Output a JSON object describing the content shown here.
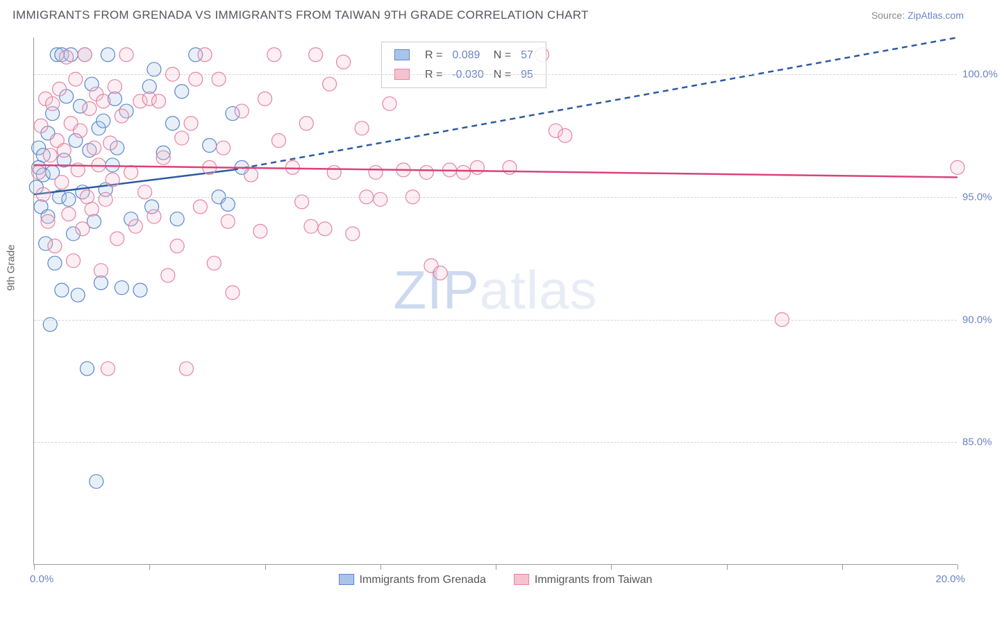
{
  "header": {
    "title": "IMMIGRANTS FROM GRENADA VS IMMIGRANTS FROM TAIWAN 9TH GRADE CORRELATION CHART",
    "source_prefix": "Source: ",
    "source_link": "ZipAtlas.com"
  },
  "chart": {
    "type": "scatter",
    "y_axis_label": "9th Grade",
    "background_color": "#ffffff",
    "grid_color": "#d4d4d4",
    "axis_color": "#999999",
    "xlim": [
      0,
      20
    ],
    "ylim": [
      80,
      101.5
    ],
    "x_ticks": [
      0,
      2.5,
      5,
      7.5,
      10,
      12.5,
      15,
      17.5,
      20
    ],
    "x_tick_labels": {
      "0": "0.0%",
      "20": "20.0%"
    },
    "y_ticks": [
      85,
      90,
      95,
      100
    ],
    "y_tick_labels": [
      "85.0%",
      "90.0%",
      "95.0%",
      "100.0%"
    ],
    "watermark": {
      "text_a": "ZIP",
      "text_b": "atlas"
    },
    "marker_radius": 10,
    "marker_stroke_width": 1.2,
    "marker_fill_opacity": 0.28,
    "legend_top": {
      "r_label": "R =",
      "n_label": "N =",
      "rows": [
        {
          "swatch_fill": "#a9c4ea",
          "swatch_stroke": "#5b86c9",
          "r": "0.089",
          "n": "57"
        },
        {
          "swatch_fill": "#f6c2d0",
          "swatch_stroke": "#e484a3",
          "r": "-0.030",
          "n": "95"
        }
      ]
    },
    "legend_bottom": [
      {
        "swatch_fill": "#a9c4ea",
        "swatch_stroke": "#5b86c9",
        "label": "Immigrants from Grenada"
      },
      {
        "swatch_fill": "#f6c2d0",
        "swatch_stroke": "#e484a3",
        "label": "Immigrants from Taiwan"
      }
    ],
    "series": [
      {
        "name": "grenada",
        "fill": "#a9c4ea",
        "stroke": "#5b86c9",
        "trend": {
          "color": "#2c5aa0",
          "width": 2.5,
          "solid": [
            [
              0.0,
              95.1
            ],
            [
              4.3,
              96.1
            ]
          ],
          "dashed": [
            [
              4.3,
              96.1
            ],
            [
              20.0,
              101.5
            ]
          ]
        },
        "points": [
          [
            0.05,
            95.4
          ],
          [
            0.1,
            96.2
          ],
          [
            0.1,
            97.0
          ],
          [
            0.15,
            94.6
          ],
          [
            0.2,
            96.7
          ],
          [
            0.2,
            95.9
          ],
          [
            0.25,
            93.1
          ],
          [
            0.3,
            97.6
          ],
          [
            0.3,
            94.2
          ],
          [
            0.35,
            89.8
          ],
          [
            0.4,
            98.4
          ],
          [
            0.4,
            96.0
          ],
          [
            0.45,
            92.3
          ],
          [
            0.5,
            100.8
          ],
          [
            0.55,
            95.0
          ],
          [
            0.6,
            100.8
          ],
          [
            0.6,
            91.2
          ],
          [
            0.65,
            96.5
          ],
          [
            0.7,
            99.1
          ],
          [
            0.75,
            94.9
          ],
          [
            0.8,
            100.8
          ],
          [
            0.85,
            93.5
          ],
          [
            0.9,
            97.3
          ],
          [
            0.95,
            91.0
          ],
          [
            1.0,
            98.7
          ],
          [
            1.05,
            95.2
          ],
          [
            1.1,
            100.8
          ],
          [
            1.15,
            88.0
          ],
          [
            1.2,
            96.9
          ],
          [
            1.25,
            99.6
          ],
          [
            1.3,
            94.0
          ],
          [
            1.35,
            83.4
          ],
          [
            1.4,
            97.8
          ],
          [
            1.45,
            91.5
          ],
          [
            1.5,
            98.1
          ],
          [
            1.55,
            95.3
          ],
          [
            1.6,
            100.8
          ],
          [
            1.7,
            96.3
          ],
          [
            1.75,
            99.0
          ],
          [
            1.8,
            97.0
          ],
          [
            1.9,
            91.3
          ],
          [
            2.0,
            98.5
          ],
          [
            2.1,
            94.1
          ],
          [
            2.3,
            91.2
          ],
          [
            2.5,
            99.5
          ],
          [
            2.55,
            94.6
          ],
          [
            2.6,
            100.2
          ],
          [
            2.8,
            96.8
          ],
          [
            3.0,
            98.0
          ],
          [
            3.1,
            94.1
          ],
          [
            3.2,
            99.3
          ],
          [
            3.5,
            100.8
          ],
          [
            3.8,
            97.1
          ],
          [
            4.0,
            95.0
          ],
          [
            4.2,
            94.7
          ],
          [
            4.3,
            98.4
          ],
          [
            4.5,
            96.2
          ]
        ]
      },
      {
        "name": "taiwan",
        "fill": "#f6c2d0",
        "stroke": "#e484a3",
        "trend": {
          "color": "#d9427a",
          "width": 2.5,
          "solid": [
            [
              0.0,
              96.3
            ],
            [
              20.0,
              95.8
            ]
          ],
          "dashed": null
        },
        "points": [
          [
            0.1,
            96.0
          ],
          [
            0.15,
            97.9
          ],
          [
            0.2,
            95.1
          ],
          [
            0.25,
            99.0
          ],
          [
            0.3,
            94.0
          ],
          [
            0.35,
            96.7
          ],
          [
            0.4,
            98.8
          ],
          [
            0.45,
            93.0
          ],
          [
            0.5,
            97.3
          ],
          [
            0.55,
            99.4
          ],
          [
            0.6,
            95.6
          ],
          [
            0.65,
            96.9
          ],
          [
            0.7,
            100.7
          ],
          [
            0.75,
            94.3
          ],
          [
            0.8,
            98.0
          ],
          [
            0.85,
            92.4
          ],
          [
            0.9,
            99.8
          ],
          [
            0.95,
            96.1
          ],
          [
            1.0,
            97.7
          ],
          [
            1.05,
            93.7
          ],
          [
            1.1,
            100.8
          ],
          [
            1.15,
            95.0
          ],
          [
            1.2,
            98.6
          ],
          [
            1.25,
            94.5
          ],
          [
            1.3,
            97.0
          ],
          [
            1.35,
            99.2
          ],
          [
            1.4,
            96.3
          ],
          [
            1.45,
            92.0
          ],
          [
            1.5,
            98.9
          ],
          [
            1.55,
            94.9
          ],
          [
            1.6,
            88.0
          ],
          [
            1.65,
            97.2
          ],
          [
            1.7,
            95.7
          ],
          [
            1.75,
            99.5
          ],
          [
            1.8,
            93.3
          ],
          [
            1.9,
            98.3
          ],
          [
            2.0,
            100.8
          ],
          [
            2.1,
            96.0
          ],
          [
            2.2,
            93.8
          ],
          [
            2.3,
            98.9
          ],
          [
            2.4,
            95.2
          ],
          [
            2.5,
            99.0
          ],
          [
            2.6,
            94.2
          ],
          [
            2.7,
            98.9
          ],
          [
            2.8,
            96.6
          ],
          [
            2.9,
            91.8
          ],
          [
            3.0,
            100.0
          ],
          [
            3.1,
            93.0
          ],
          [
            3.2,
            97.4
          ],
          [
            3.3,
            88.0
          ],
          [
            3.4,
            98.0
          ],
          [
            3.5,
            99.8
          ],
          [
            3.6,
            94.6
          ],
          [
            3.7,
            100.8
          ],
          [
            3.8,
            96.2
          ],
          [
            3.9,
            92.3
          ],
          [
            4.0,
            99.8
          ],
          [
            4.1,
            97.0
          ],
          [
            4.2,
            94.0
          ],
          [
            4.3,
            91.1
          ],
          [
            4.5,
            98.5
          ],
          [
            4.7,
            95.9
          ],
          [
            4.9,
            93.6
          ],
          [
            5.0,
            99.0
          ],
          [
            5.2,
            100.8
          ],
          [
            5.3,
            97.3
          ],
          [
            5.6,
            96.2
          ],
          [
            5.8,
            94.8
          ],
          [
            5.9,
            98.0
          ],
          [
            6.0,
            93.8
          ],
          [
            6.1,
            100.8
          ],
          [
            6.3,
            93.7
          ],
          [
            6.4,
            99.6
          ],
          [
            6.5,
            96.0
          ],
          [
            6.7,
            100.5
          ],
          [
            6.9,
            93.5
          ],
          [
            7.1,
            97.8
          ],
          [
            7.2,
            95.0
          ],
          [
            7.4,
            96.0
          ],
          [
            7.5,
            94.9
          ],
          [
            7.7,
            98.8
          ],
          [
            8.0,
            96.1
          ],
          [
            8.2,
            95.0
          ],
          [
            8.5,
            96.0
          ],
          [
            8.6,
            92.2
          ],
          [
            8.8,
            91.9
          ],
          [
            9.0,
            96.1
          ],
          [
            9.3,
            96.0
          ],
          [
            9.6,
            96.2
          ],
          [
            10.3,
            96.2
          ],
          [
            11.0,
            100.8
          ],
          [
            11.3,
            97.7
          ],
          [
            11.5,
            97.5
          ],
          [
            16.2,
            90.0
          ],
          [
            20.0,
            96.2
          ]
        ]
      }
    ]
  }
}
